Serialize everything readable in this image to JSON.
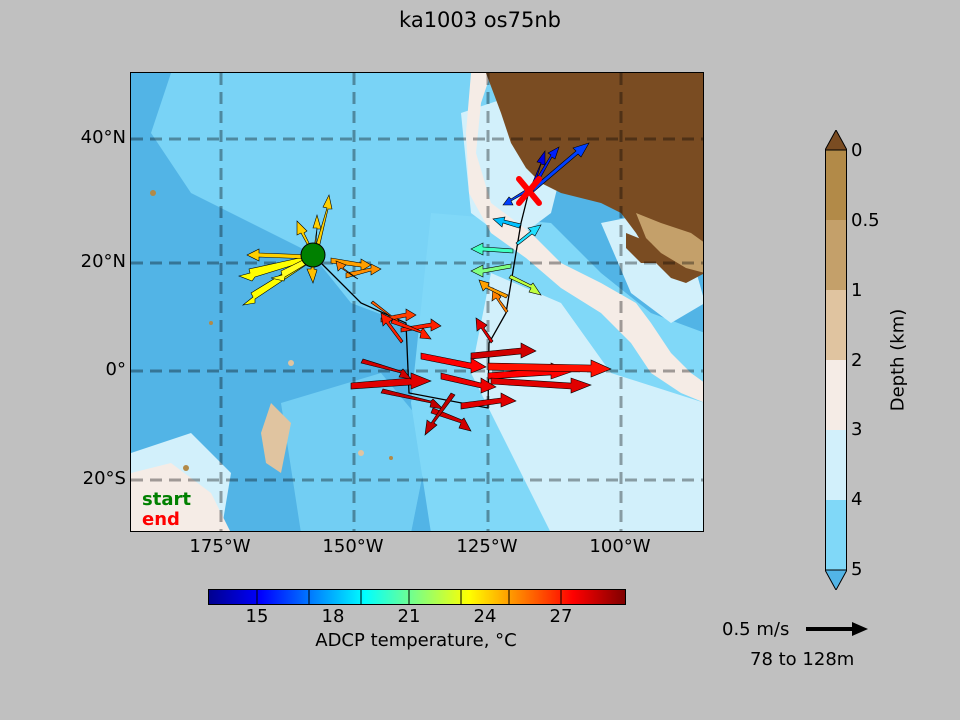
{
  "title": "ka1003 os75nb",
  "map": {
    "lat_ticks": [
      "40°N",
      "20°N",
      "0°",
      "20°S"
    ],
    "lon_ticks": [
      "175°W",
      "150°W",
      "125°W",
      "100°W"
    ],
    "legend": {
      "start": "start",
      "end": "end"
    },
    "markers": {
      "start_color": "#008000",
      "end_color": "#ff0000"
    }
  },
  "temperature_colorbar": {
    "ticks": [
      "15",
      "18",
      "21",
      "24",
      "27"
    ],
    "label": "ADCP temperature, °C",
    "colormap": [
      "#00008f",
      "#0000ff",
      "#0080ff",
      "#00ffff",
      "#80ff80",
      "#ffff00",
      "#ff8000",
      "#ff0000",
      "#800000"
    ]
  },
  "depth_colorbar": {
    "ticks": [
      "0",
      "0.5",
      "1",
      "2",
      "3",
      "4",
      "5"
    ],
    "label": "Depth (km)",
    "colors": [
      "#b28a48",
      "#c4a06a",
      "#e0c4a0",
      "#f5ece6",
      "#d2f0fb",
      "#80d8f8",
      "#52b4e6"
    ],
    "land_color": "#7a4c22"
  },
  "scale_arrow": {
    "speed": "0.5 m/s",
    "depth_range": "78 to 128m"
  }
}
